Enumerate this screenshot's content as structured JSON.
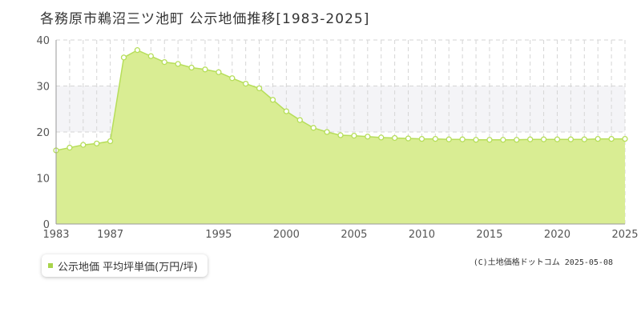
{
  "title": "各務原市鵜沼三ツ池町 公示地価推移[1983-2025]",
  "legend": {
    "label": "公示地価 平均坪単価(万円/坪)"
  },
  "copyright": "(C)土地価格ドットコム 2025-05-08",
  "colors": {
    "fill": "#d9ed93",
    "line": "#b6de5a",
    "point": "#ffffff",
    "point_stroke": "#b6de5a",
    "band": "#f4f4f7"
  },
  "chart_data": {
    "type": "area",
    "title": "各務原市鵜沼三ツ池町 公示地価推移[1983-2025]",
    "xlabel": "",
    "ylabel": "",
    "xlim": [
      1983,
      2025
    ],
    "ylim": [
      0,
      40
    ],
    "x_ticks": [
      1983,
      1987,
      1995,
      2000,
      2005,
      2010,
      2015,
      2020,
      2025
    ],
    "y_ticks": [
      0,
      10,
      20,
      30,
      40
    ],
    "grid": true,
    "legend_position": "bottom-left",
    "series": [
      {
        "name": "公示地価 平均坪単価(万円/坪)",
        "x": [
          1983,
          1984,
          1985,
          1986,
          1987,
          1988,
          1989,
          1990,
          1991,
          1992,
          1993,
          1994,
          1995,
          1996,
          1997,
          1998,
          1999,
          2000,
          2001,
          2002,
          2003,
          2004,
          2005,
          2006,
          2007,
          2008,
          2009,
          2010,
          2011,
          2012,
          2013,
          2014,
          2015,
          2016,
          2017,
          2018,
          2019,
          2020,
          2021,
          2022,
          2023,
          2024,
          2025
        ],
        "y": [
          16.0,
          16.6,
          17.2,
          17.5,
          18.0,
          36.2,
          37.8,
          36.5,
          35.2,
          34.8,
          34.0,
          33.6,
          33.0,
          31.7,
          30.5,
          29.5,
          27.0,
          24.5,
          22.6,
          20.9,
          20.0,
          19.3,
          19.2,
          19.0,
          18.8,
          18.7,
          18.6,
          18.5,
          18.5,
          18.4,
          18.4,
          18.3,
          18.3,
          18.3,
          18.3,
          18.4,
          18.4,
          18.4,
          18.4,
          18.4,
          18.5,
          18.5,
          18.5
        ]
      }
    ]
  }
}
